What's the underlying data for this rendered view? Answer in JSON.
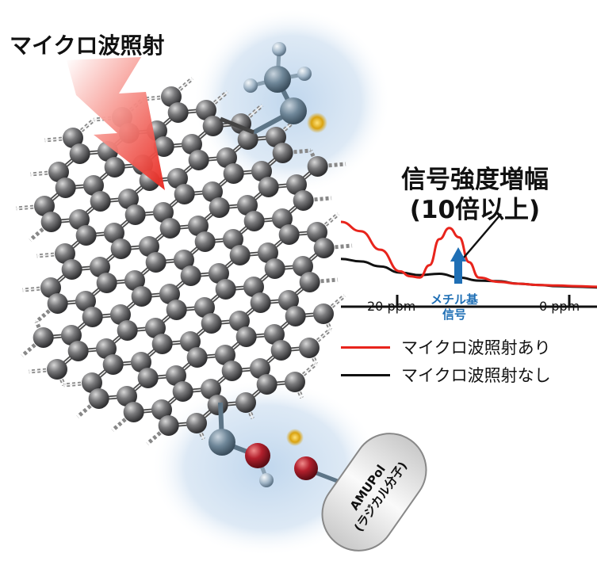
{
  "labels": {
    "microwave": "マイクロ波照射",
    "gain_line1": "信号強度増幅",
    "gain_line2": "(10倍以上)",
    "methyl_line1": "メチル基",
    "methyl_line2": "信号",
    "radical_line1": "AMUPol",
    "radical_line2": "(ラジカル分子)"
  },
  "chart_data": {
    "type": "line",
    "title": "",
    "xlabel": "",
    "ylabel": "",
    "x_ticks": [
      "20 ppm",
      "0 ppm"
    ],
    "xlim": [
      24,
      -2
    ],
    "series": [
      {
        "name": "マイクロ波照射あり",
        "color": "#e8241c",
        "x": [
          24,
          22,
          20,
          18,
          17,
          16,
          15,
          14,
          13,
          12,
          11,
          10,
          8,
          6,
          4,
          2,
          0,
          -2
        ],
        "y": [
          1.0,
          0.85,
          0.55,
          0.2,
          0.12,
          0.1,
          0.3,
          0.72,
          0.9,
          0.75,
          0.35,
          0.1,
          0.03,
          0.0,
          -0.02,
          -0.03,
          -0.04,
          -0.05
        ]
      },
      {
        "name": "マイクロ波照射なし",
        "color": "#111111",
        "x": [
          24,
          22,
          20,
          18,
          16,
          14,
          12,
          10,
          8,
          6,
          4,
          2,
          0,
          -2
        ],
        "y": [
          0.4,
          0.36,
          0.28,
          0.18,
          0.14,
          0.16,
          0.1,
          0.05,
          0.04,
          0.0,
          -0.02,
          -0.04,
          -0.05,
          -0.06
        ]
      }
    ]
  },
  "legend": {
    "on": "マイクロ波照射あり",
    "off": "マイクロ波照射なし",
    "on_color": "#e8241c",
    "off_color": "#111111"
  },
  "colors": {
    "carbon": "#6e6e70",
    "oxygen": "#b3202d",
    "hydrogen": "#9fb4c6",
    "electron": "#d9a20f",
    "highlight": "#bcd4ec",
    "arrow": "#1f6fb5"
  }
}
